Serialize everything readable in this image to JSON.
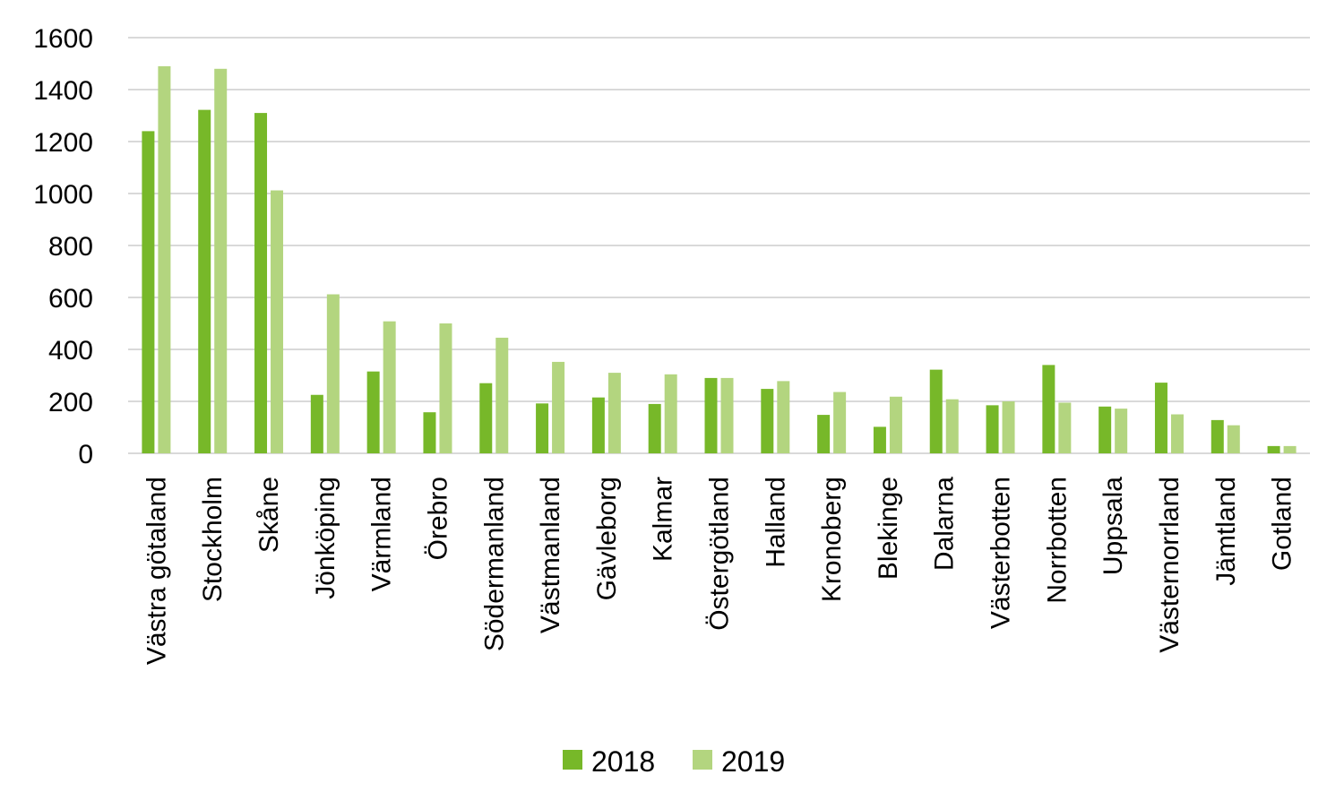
{
  "chart_data": {
    "type": "bar",
    "categories": [
      "Västra götaland",
      "Stockholm",
      "Skåne",
      "Jönköping",
      "Värmland",
      "Örebro",
      "Södermanland",
      "Västmanland",
      "Gävleborg",
      "Kalmar",
      "Östergötland",
      "Halland",
      "Kronoberg",
      "Blekinge",
      "Dalarna",
      "Västerbotten",
      "Norrbotten",
      "Uppsala",
      "Västernorrland",
      "Jämtland",
      "Gotland"
    ],
    "series": [
      {
        "name": "2018",
        "color": "#77b829",
        "values": [
          1240,
          1322,
          1310,
          225,
          315,
          158,
          270,
          192,
          215,
          190,
          290,
          248,
          148,
          102,
          322,
          185,
          340,
          180,
          272,
          128,
          28
        ]
      },
      {
        "name": "2019",
        "color": "#b3d57f",
        "values": [
          1490,
          1480,
          1012,
          612,
          508,
          500,
          445,
          352,
          310,
          304,
          290,
          278,
          236,
          218,
          208,
          200,
          195,
          172,
          150,
          108,
          28
        ]
      }
    ],
    "ylim": [
      0,
      1600
    ],
    "yticks": [
      0,
      200,
      400,
      600,
      800,
      1000,
      1200,
      1400,
      1600
    ],
    "grid": true,
    "legend": "bottom",
    "gridline_color": "#d9d9d9"
  }
}
